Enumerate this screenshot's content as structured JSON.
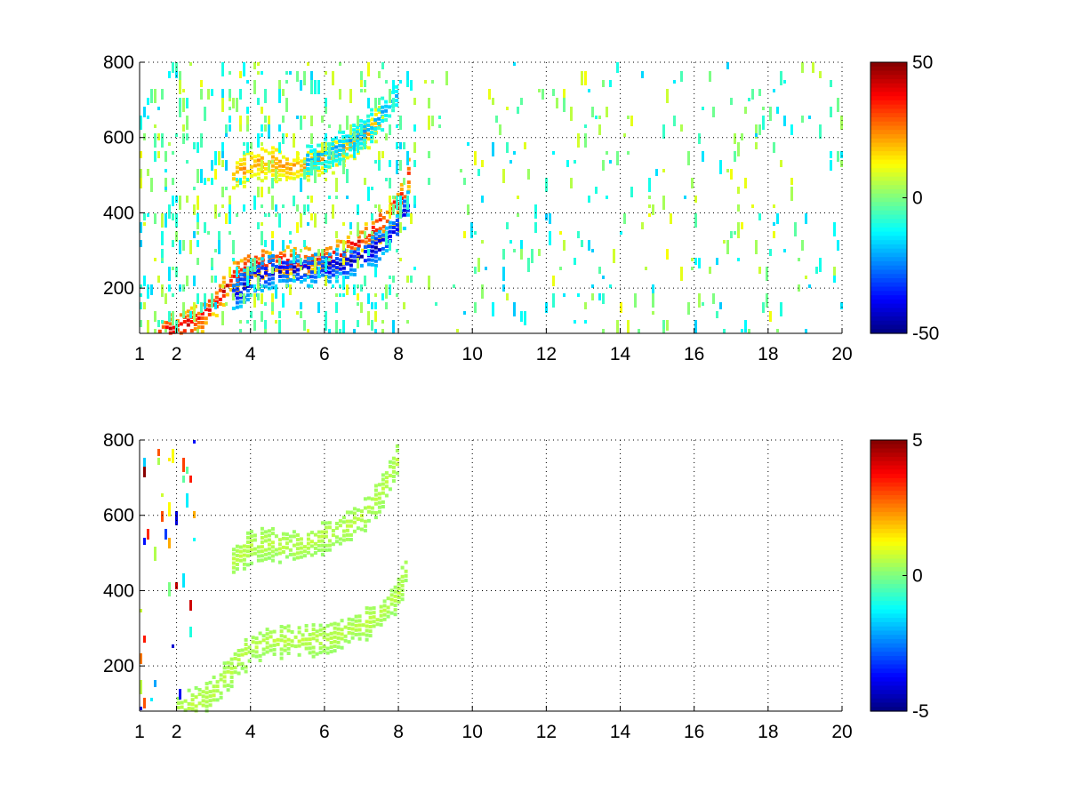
{
  "chart_data": [
    {
      "type": "heatmap",
      "title": "",
      "xlabel": "",
      "ylabel": "",
      "xlim": [
        1,
        20
      ],
      "ylim": [
        80,
        800
      ],
      "xticks": [
        1,
        2,
        4,
        6,
        8,
        10,
        12,
        14,
        16,
        18,
        20
      ],
      "xtick_labels": [
        "1",
        "2",
        "4",
        "6",
        "8",
        "10",
        "12",
        "14",
        "16",
        "18",
        "20"
      ],
      "yticks": [
        200,
        400,
        600,
        800
      ],
      "ytick_labels": [
        "200",
        "400",
        "600",
        "800"
      ],
      "grid": true,
      "colormap": "jet",
      "colorbar": {
        "min": -50,
        "max": 50,
        "ticks": [
          50,
          0,
          -50
        ],
        "tick_labels": [
          "50",
          "0",
          "-50"
        ],
        "placement": "right"
      },
      "features": [
        {
          "name": "lower band positive",
          "x": [
            1.5,
            2,
            2.5,
            3,
            3.5,
            4,
            4.5,
            5,
            5.5,
            6,
            6.5,
            7,
            7.5,
            8,
            8.2,
            8.3
          ],
          "y": [
            85,
            95,
            115,
            160,
            230,
            260,
            270,
            270,
            270,
            280,
            300,
            330,
            370,
            430,
            480,
            540
          ],
          "value": 38
        },
        {
          "name": "lower band negative",
          "x": [
            3.5,
            4,
            4.5,
            5,
            5.5,
            6,
            6.5,
            7,
            7.5,
            8,
            8.2,
            8.3
          ],
          "y": [
            180,
            225,
            245,
            250,
            250,
            255,
            265,
            285,
            315,
            370,
            420,
            470
          ],
          "value": -42
        },
        {
          "name": "upper band positive",
          "x": [
            3.5,
            4,
            4.5,
            5,
            5.5,
            6,
            6.5,
            7,
            7.5
          ],
          "y": [
            500,
            530,
            535,
            520,
            525,
            545,
            565,
            600,
            650
          ],
          "value": 22
        },
        {
          "name": "upper band negative",
          "x": [
            5.5,
            6,
            6.5,
            7,
            7.5,
            8
          ],
          "y": [
            540,
            560,
            580,
            615,
            660,
            720
          ],
          "value": -20
        }
      ],
      "noise_x_range": [
        1,
        20
      ],
      "noise_values": [
        -18,
        12
      ]
    },
    {
      "type": "heatmap",
      "title": "",
      "xlabel": "",
      "ylabel": "",
      "xlim": [
        1,
        20
      ],
      "ylim": [
        80,
        800
      ],
      "xticks": [
        1,
        2,
        4,
        6,
        8,
        10,
        12,
        14,
        16,
        18,
        20
      ],
      "xtick_labels": [
        "1",
        "2",
        "4",
        "6",
        "8",
        "10",
        "12",
        "14",
        "16",
        "18",
        "20"
      ],
      "yticks": [
        200,
        400,
        600,
        800
      ],
      "ytick_labels": [
        "200",
        "400",
        "600",
        "800"
      ],
      "grid": true,
      "colormap": "jet",
      "colorbar": {
        "min": -5,
        "max": 5,
        "ticks": [
          5,
          0,
          -5
        ],
        "tick_labels": [
          "5",
          "0",
          "-5"
        ],
        "placement": "right"
      },
      "features": [
        {
          "name": "lower band",
          "x": [
            2,
            2.5,
            3,
            3.5,
            4,
            4.5,
            5,
            5.5,
            6,
            6.5,
            7,
            7.5,
            8,
            8.2
          ],
          "y": [
            90,
            100,
            130,
            200,
            250,
            265,
            270,
            270,
            275,
            290,
            310,
            340,
            400,
            470
          ],
          "value": 0.6
        },
        {
          "name": "upper band",
          "x": [
            3.5,
            4,
            4.5,
            5,
            5.5,
            6,
            6.5,
            7,
            7.5,
            8
          ],
          "y": [
            480,
            520,
            525,
            520,
            525,
            545,
            565,
            600,
            660,
            760
          ],
          "value": 0.6
        }
      ],
      "noise_x_range": [
        1,
        2.5
      ],
      "noise_values": [
        -5,
        5
      ]
    }
  ]
}
